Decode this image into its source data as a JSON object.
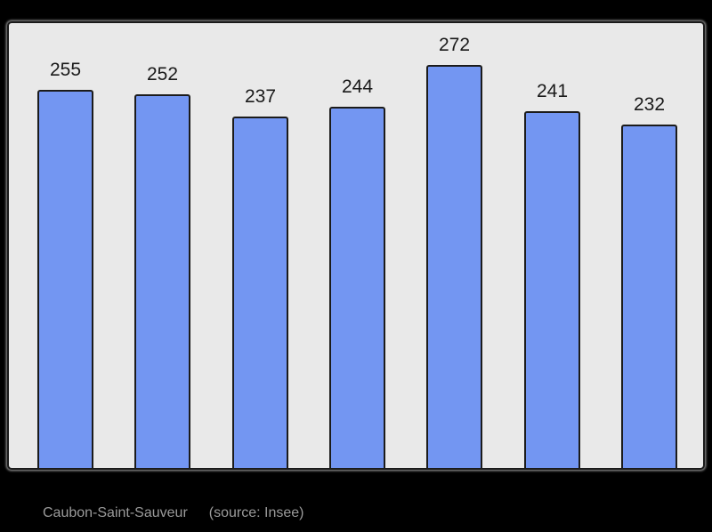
{
  "page": {
    "background_color": "#000000"
  },
  "chart_data": {
    "type": "bar",
    "values": [
      255,
      252,
      237,
      244,
      272,
      241,
      232
    ],
    "labels": [
      "255",
      "252",
      "237",
      "244",
      "272",
      "241",
      "232"
    ],
    "title": "",
    "xlabel": "",
    "ylabel": "",
    "ylim": [
      0,
      300
    ],
    "grid": false,
    "legend_position": "none",
    "bar_color": "#7396f2",
    "bar_border_color": "#1b1b1b",
    "value_label_color": "#1a1a1a",
    "plot_background_color": "#e9e9e9",
    "frame_border_color": "#1b1b1b"
  },
  "caption": {
    "commune_label": "Caubon-Saint-Sauveur",
    "source_label": "(source: Insee)",
    "text_color": "#9a9a9a"
  }
}
